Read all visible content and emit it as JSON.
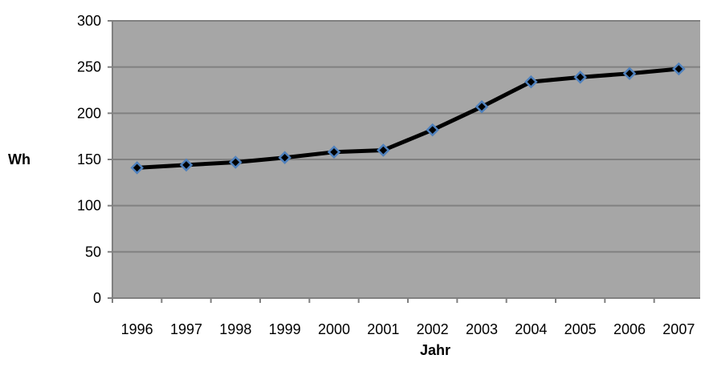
{
  "chart_data": {
    "type": "line",
    "title": "",
    "xlabel": "Jahr",
    "ylabel": "Wh",
    "categories": [
      "1996",
      "1997",
      "1998",
      "1999",
      "2000",
      "2001",
      "2002",
      "2003",
      "2004",
      "2005",
      "2006",
      "2007"
    ],
    "series": [
      {
        "values": [
          141,
          144,
          147,
          152,
          158,
          160,
          182,
          207,
          234,
          239,
          243,
          248
        ]
      }
    ],
    "ylim": [
      0,
      300
    ],
    "yticks": [
      0,
      50,
      100,
      150,
      200,
      250,
      300
    ],
    "grid": true,
    "legend": "none",
    "colors": {
      "plot_background": "#a6a6a6",
      "gridline": "#808080",
      "line": "#000000",
      "marker_fill": "#000000",
      "marker_stroke": "#4f81bd"
    }
  }
}
